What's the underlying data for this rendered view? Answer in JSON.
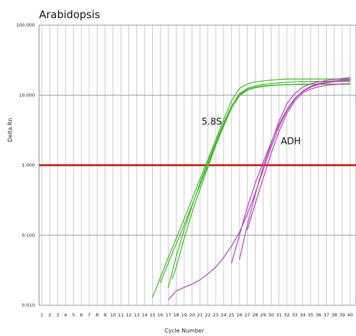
{
  "chart_data": {
    "type": "line",
    "title": "Arabidopsis",
    "xlabel": "Cycle Number",
    "ylabel": "Delta Rn",
    "y_scale": "log",
    "xlim": [
      1,
      40
    ],
    "ylim": [
      0.01,
      100
    ],
    "y_ticks": [
      "0.010",
      "0.100",
      "1.000",
      "10.000",
      "100.000"
    ],
    "x_ticks": [
      1,
      2,
      3,
      4,
      5,
      6,
      7,
      8,
      9,
      10,
      11,
      12,
      13,
      14,
      15,
      16,
      17,
      18,
      19,
      20,
      21,
      22,
      23,
      24,
      25,
      26,
      27,
      28,
      29,
      30,
      31,
      32,
      33,
      34,
      35,
      36,
      37,
      38,
      39,
      40
    ],
    "grid": true,
    "colors": {
      "5.8S": "#3cb521",
      "ADH": "#b23cb8",
      "threshold": "#c9302c"
    },
    "threshold": {
      "y": 1.0
    },
    "annotations": [
      {
        "text": "5.8S",
        "x": 22.5,
        "y": 3.8
      },
      {
        "text": "ADH",
        "x": 32.5,
        "y": 2.0
      }
    ],
    "series": [
      {
        "group": "5.8S",
        "x": [
          15,
          16,
          17,
          18,
          19,
          20,
          21,
          22,
          23,
          24,
          25,
          26,
          27,
          28,
          29,
          30,
          31,
          32,
          33,
          34,
          35,
          36,
          37,
          38,
          39,
          40
        ],
        "y": [
          0.013,
          0.025,
          0.048,
          0.09,
          0.17,
          0.33,
          0.63,
          1.2,
          2.3,
          4.5,
          8.3,
          12.5,
          14.5,
          15.5,
          16.0,
          16.4,
          16.8,
          17.0,
          17.0,
          17.0,
          17.0,
          17.0,
          17.0,
          17.0,
          17.0,
          17.0
        ]
      },
      {
        "group": "5.8S",
        "x": [
          16,
          17,
          18,
          19,
          20,
          21,
          22,
          23,
          24,
          25,
          26,
          27,
          28,
          29,
          30,
          31,
          32,
          33,
          34,
          35,
          36,
          37,
          38,
          39,
          40
        ],
        "y": [
          0.021,
          0.04,
          0.075,
          0.14,
          0.27,
          0.52,
          1.0,
          1.95,
          3.8,
          7.0,
          10.5,
          12.5,
          13.5,
          14.2,
          14.6,
          15.0,
          15.3,
          15.5,
          15.6,
          15.7,
          15.7,
          15.7,
          15.7,
          15.7,
          15.7
        ]
      },
      {
        "group": "5.8S",
        "x": [
          17,
          18,
          19,
          20,
          21,
          22,
          23,
          24,
          25,
          26,
          27,
          28,
          29,
          30,
          31,
          32,
          33,
          34,
          35,
          36,
          37,
          38,
          39,
          40
        ],
        "y": [
          0.018,
          0.05,
          0.12,
          0.26,
          0.55,
          1.1,
          2.1,
          4.0,
          7.0,
          10.2,
          12.0,
          13.0,
          13.5,
          13.8,
          14.0,
          14.1,
          14.2,
          14.2,
          14.3,
          14.3,
          14.3,
          14.3,
          14.3,
          14.3
        ]
      },
      {
        "group": "5.8S",
        "x": [
          17.5,
          18,
          19,
          20,
          21,
          22,
          23,
          24,
          25,
          26,
          27,
          28,
          29,
          30,
          31,
          32,
          33,
          34,
          35,
          36,
          37,
          38,
          39,
          40
        ],
        "y": [
          0.024,
          0.035,
          0.09,
          0.21,
          0.45,
          0.92,
          1.9,
          3.6,
          6.5,
          9.8,
          11.8,
          12.8,
          13.3,
          13.7,
          14.0,
          14.2,
          14.3,
          14.4,
          14.4,
          14.4,
          14.4,
          14.4,
          14.4,
          14.4
        ]
      },
      {
        "group": "ADH",
        "x": [
          17,
          18,
          19,
          20,
          21,
          22,
          23,
          24,
          25,
          26,
          27,
          28,
          29,
          30,
          31,
          32,
          33,
          34,
          35,
          36,
          37,
          38,
          39,
          40
        ],
        "y": [
          0.012,
          0.016,
          0.018,
          0.02,
          0.023,
          0.028,
          0.035,
          0.048,
          0.07,
          0.11,
          0.2,
          0.4,
          0.85,
          1.8,
          3.5,
          6.0,
          8.8,
          11.5,
          13.3,
          14.6,
          15.5,
          16.0,
          16.5,
          16.8
        ]
      },
      {
        "group": "ADH",
        "x": [
          25,
          26,
          27,
          28,
          29,
          30,
          31,
          32,
          33,
          34,
          35,
          36,
          37,
          38,
          39,
          40
        ],
        "y": [
          0.04,
          0.1,
          0.25,
          0.55,
          1.1,
          2.1,
          3.8,
          6.2,
          9.0,
          11.3,
          13.0,
          14.2,
          15.0,
          15.6,
          16.0,
          16.3
        ]
      },
      {
        "group": "ADH",
        "x": [
          26,
          27,
          28,
          29,
          30,
          31,
          32,
          33,
          34,
          35,
          36,
          37,
          38,
          39,
          40
        ],
        "y": [
          0.045,
          0.14,
          0.38,
          0.95,
          2.0,
          4.2,
          7.5,
          10.5,
          13.0,
          14.5,
          15.5,
          16.2,
          16.8,
          17.3,
          17.8
        ]
      },
      {
        "group": "ADH",
        "x": [
          27,
          28,
          29,
          30,
          31,
          32,
          33,
          34,
          35,
          36,
          37,
          38,
          39,
          40
        ],
        "y": [
          0.12,
          0.28,
          0.65,
          1.45,
          3.0,
          5.5,
          8.3,
          10.8,
          12.2,
          13.2,
          13.8,
          14.2,
          14.5,
          14.6
        ]
      }
    ]
  }
}
